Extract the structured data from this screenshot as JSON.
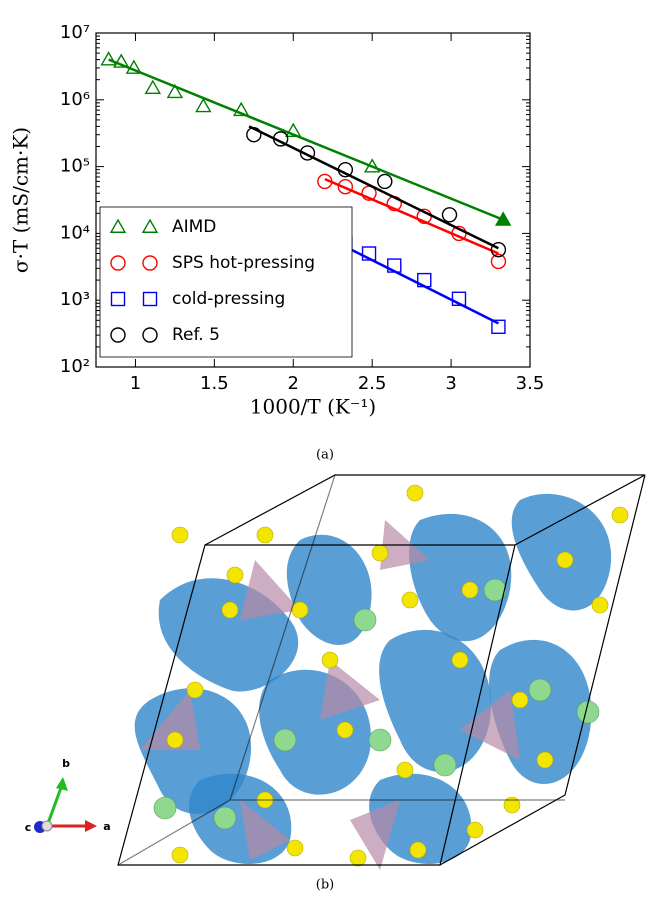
{
  "chart_data": {
    "type": "scatter",
    "log_y": true,
    "x_label": "1000/T (K⁻¹)",
    "y_label": "σ·T (mS/cm·K)",
    "xlim": [
      0.75,
      3.5
    ],
    "xticks": [
      1.0,
      1.5,
      2.0,
      2.5,
      3.0,
      3.5
    ],
    "ylim": [
      100,
      10000000
    ],
    "yticks": [
      {
        "value": 100,
        "label": "10²"
      },
      {
        "value": 1000,
        "label": "10³"
      },
      {
        "value": 10000,
        "label": "10⁴"
      },
      {
        "value": 100000,
        "label": "10⁵"
      },
      {
        "value": 1000000,
        "label": "10⁶"
      },
      {
        "value": 10000000,
        "label": "10⁷"
      }
    ],
    "legend": "lower left",
    "series": [
      {
        "name": "AIMD",
        "color": "#008000",
        "marker": "triangle",
        "x": [
          0.83,
          0.91,
          0.99,
          1.11,
          1.25,
          1.43,
          1.67,
          2.0,
          2.5
        ],
        "values": [
          4000000,
          3700000,
          3000000,
          1500000,
          1300000,
          800000,
          700000,
          340000,
          100000
        ],
        "filled_point": {
          "x": 3.33,
          "y": 16000
        },
        "fit": {
          "x": [
            0.83,
            3.33
          ],
          "y": [
            4000000,
            16000
          ]
        }
      },
      {
        "name": "SPS hot-pressing",
        "color": "#ff0000",
        "marker": "circle",
        "x": [
          2.2,
          2.33,
          2.48,
          2.64,
          2.83,
          3.05,
          3.3
        ],
        "values": [
          60000,
          50000,
          40000,
          28000,
          18000,
          10000,
          3800
        ],
        "fit": {
          "x": [
            2.2,
            3.3
          ],
          "y": [
            65000,
            5000
          ]
        }
      },
      {
        "name": "cold-pressing",
        "color": "#0000ff",
        "marker": "square",
        "x": [
          2.2,
          2.33,
          2.48,
          2.64,
          2.83,
          3.05,
          3.3
        ],
        "values": [
          9000,
          7000,
          5000,
          3300,
          2000,
          1050,
          400
        ],
        "fit": {
          "x": [
            2.2,
            3.3
          ],
          "y": [
            9000,
            450
          ]
        }
      },
      {
        "name": "Ref. 5",
        "color": "#000000",
        "marker": "circle",
        "x": [
          1.75,
          1.92,
          2.09,
          2.33,
          2.58,
          2.99,
          3.3
        ],
        "values": [
          300000,
          260000,
          160000,
          90000,
          60000,
          19000,
          5700
        ],
        "fit": {
          "x": [
            1.72,
            3.3
          ],
          "y": [
            400000,
            6000
          ]
        }
      }
    ]
  },
  "figure": {
    "caption_a": "(a)",
    "caption_b": "(b)",
    "axis_b": "b",
    "axis_c": "c",
    "axis_a": "a"
  }
}
